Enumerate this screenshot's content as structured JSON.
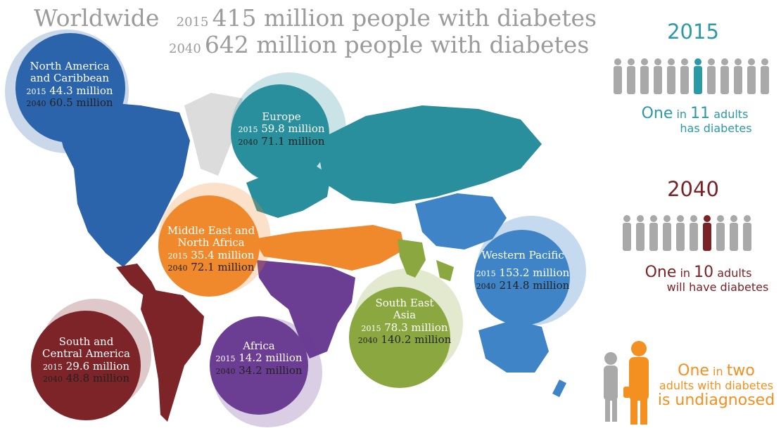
{
  "header": {
    "worldwide": "Worldwide",
    "y2015": "2015",
    "line2015": "415 million people with diabetes",
    "y2040": "2040",
    "line2040": "642 million people with diabetes"
  },
  "regions": {
    "north_america": {
      "name1": "North America",
      "name2": "and Caribbean",
      "y1": "2015",
      "v1": "44.3 million",
      "y2": "2040",
      "v2": "60.5 million",
      "color": "#2b64ab"
    },
    "europe": {
      "name1": "Europe",
      "y1": "2015",
      "v1": "59.8 million",
      "y2": "2040",
      "v2": "71.1 million",
      "color": "#2a8f9c"
    },
    "mena": {
      "name1": "Middle East and",
      "name2": "North Africa",
      "y1": "2015",
      "v1": "35.4 million",
      "y2": "2040",
      "v2": "72.1 million",
      "color": "#f0892b"
    },
    "western_pacific": {
      "name1": "Western Pacific",
      "y1": "2015",
      "v1": "153.2 million",
      "y2": "2040",
      "v2": "214.8 million",
      "color": "#3f84c7"
    },
    "south_east_asia": {
      "name1": "South East",
      "name2": "Asia",
      "y1": "2015",
      "v1": "78.3 million",
      "y2": "2040",
      "v2": "140.2 million",
      "color": "#8ba840"
    },
    "south_central_america": {
      "name1": "South and",
      "name2": "Central America",
      "y1": "2015",
      "v1": "29.6 million",
      "y2": "2040",
      "v2": "48.8 million",
      "color": "#7c2427"
    },
    "africa": {
      "name1": "Africa",
      "y1": "2015",
      "v1": "14.2 million",
      "y2": "2040",
      "v2": "34.2 million",
      "color": "#6b3d93"
    }
  },
  "side": {
    "title2015": "2015",
    "stat2015_a": "One",
    "stat2015_b": " in ",
    "stat2015_c": "11",
    "stat2015_d": " adults",
    "stat2015_e": "has diabetes",
    "title2040": "2040",
    "stat2040_a": "One",
    "stat2040_b": " in ",
    "stat2040_c": "10",
    "stat2040_d": " adults",
    "stat2040_e": "will have diabetes",
    "undiag_a": "One",
    "undiag_b": " in ",
    "undiag_c": "two",
    "undiag_d": "adults with diabetes",
    "undiag_e": "is undiagnosed",
    "teal": "#2b9aa6",
    "maroon": "#7a2226",
    "orange": "#f39020",
    "grey": "#a9a9a9"
  }
}
